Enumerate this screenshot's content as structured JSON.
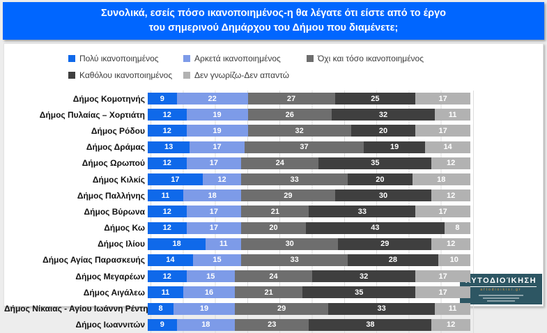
{
  "header": {
    "title_line1": "Συνολικά, εσείς πόσο ικανοποιημένος-η θα λέγατε ότι είστε από το έργο",
    "title_line2": "του σημερινού Δημάρχου του Δήμου που διαμένετε;",
    "bg_color": "#0066ff"
  },
  "chart_data": {
    "type": "bar",
    "subtype": "horizontal-stacked",
    "unit": "%",
    "xlim": [
      0,
      100
    ],
    "grid": true,
    "legend_position": "top",
    "series_names": [
      "Πολύ ικανοποιημένος",
      "Αρκετά ικανοποιημένος",
      "Όχι και τόσο ικανοποιημένος",
      "Καθόλου ικανοποιημένος",
      "Δεν γνωρίζω-Δεν απαντώ"
    ],
    "series_colors": [
      "#0f69ea",
      "#7d9be8",
      "#6e6e6e",
      "#3f3f3f",
      "#b2b2b2"
    ],
    "categories": [
      "Δήμος Κομοτηνής",
      "Δήμος Πυλαίας – Χορτιάτη",
      "Δήμος Ρόδου",
      "Δήμος Δράμας",
      "Δήμος Ωρωπού",
      "Δήμος Κιλκίς",
      "Δήμος Παλλήνης",
      "Δήμος Βύρωνα",
      "Δήμος Κω",
      "Δήμος Ιλίου",
      "Δήμος Αγίας Παρασκευής",
      "Δήμος Μεγαρέων",
      "Δήμος Αιγάλεω",
      "Δήμος Νίκαιας - Αγίου Ιωάννη Ρέντη",
      "Δήμος Ιωαννιτών"
    ],
    "rows": [
      [
        9,
        22,
        27,
        25,
        17
      ],
      [
        12,
        19,
        26,
        32,
        11
      ],
      [
        12,
        19,
        32,
        20,
        17
      ],
      [
        13,
        17,
        37,
        19,
        14
      ],
      [
        12,
        17,
        24,
        35,
        12
      ],
      [
        17,
        12,
        33,
        20,
        18
      ],
      [
        11,
        18,
        29,
        30,
        12
      ],
      [
        12,
        17,
        21,
        33,
        17
      ],
      [
        12,
        17,
        20,
        43,
        8
      ],
      [
        18,
        11,
        30,
        29,
        12
      ],
      [
        14,
        15,
        33,
        28,
        10
      ],
      [
        12,
        15,
        24,
        32,
        17
      ],
      [
        11,
        16,
        21,
        35,
        17
      ],
      [
        8,
        19,
        29,
        33,
        11
      ],
      [
        9,
        18,
        23,
        38,
        12
      ]
    ]
  },
  "logo": {
    "title": "Αυτοδιοίκηση",
    "site": "aftodioikisi.gr",
    "bg_color": "#2d5663"
  }
}
